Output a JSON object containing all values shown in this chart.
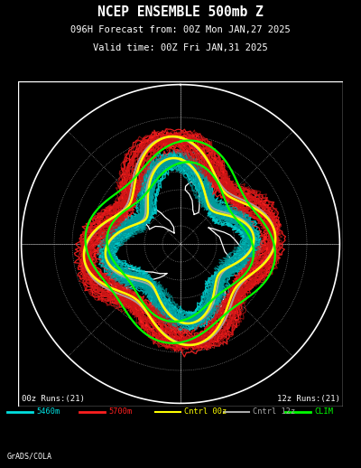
{
  "title_line1": "NCEP ENSEMBLE 500mb Z",
  "title_line2": "096H Forecast from: 00Z Mon JAN,27 2025",
  "title_line3": "Valid time: 00Z Fri JAN,31 2025",
  "label_bottom_left": "00z Runs:(21)",
  "label_bottom_right": "12z Runs:(21)",
  "watermark": "GrADS/COLA",
  "legend_items": [
    {
      "label": "5460m",
      "color": "#00e0e0",
      "lw": 2.0
    },
    {
      "label": "5700m",
      "color": "#ff2020",
      "lw": 2.0
    },
    {
      "label": "Cntrl 00z",
      "color": "#ffff00",
      "lw": 1.5
    },
    {
      "label": "Cntrl 12z",
      "color": "#aaaaaa",
      "lw": 1.5
    },
    {
      "label": "CLIM",
      "color": "#00ff00",
      "lw": 2.0
    }
  ],
  "bg_color": "#000000",
  "map_border_color": "#ffffff",
  "grid_color": "#ffffff",
  "title_color": "#ffffff",
  "inner_r": 0.58,
  "outer_r": 0.78,
  "wn4_amp": 0.14,
  "wn4_phase": 0.45,
  "wn2_amp": 0.04,
  "wn3_amp": 0.03
}
